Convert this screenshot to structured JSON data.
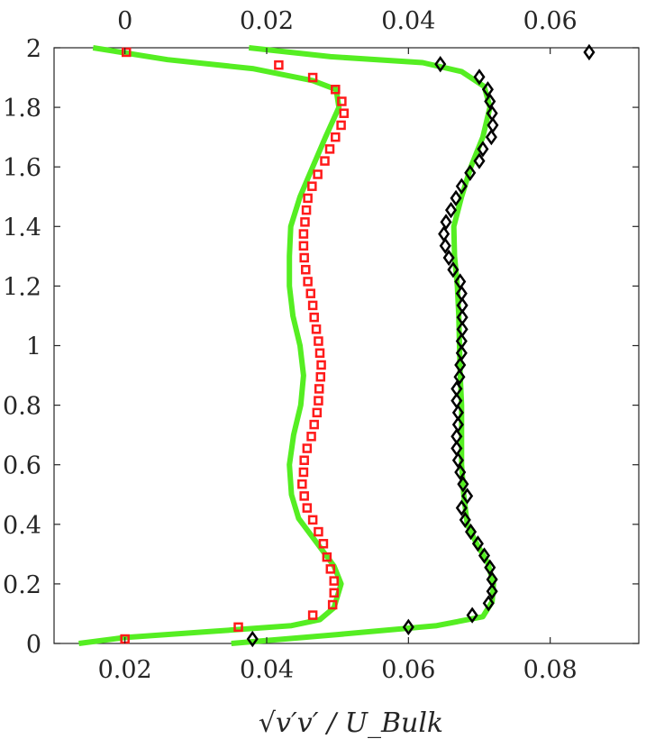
{
  "chart_data": {
    "type": "scatter",
    "title": "",
    "xlabel": "√v′v′ / U_Bulk",
    "ylabel": "",
    "grid": false,
    "axes": {
      "bottom": {
        "range": [
          0.01,
          0.0925
        ],
        "ticks": [
          0.02,
          0.04,
          0.06,
          0.08
        ],
        "tick_labels": [
          "0.02",
          "0.04",
          "0.06",
          "0.08"
        ]
      },
      "top": {
        "range": [
          -0.01,
          0.0725
        ],
        "ticks": [
          0,
          0.02,
          0.04,
          0.06
        ],
        "tick_labels": [
          "0",
          "0.02",
          "0.04",
          "0.06"
        ]
      },
      "left": {
        "range": [
          0,
          2
        ],
        "ticks": [
          0,
          0.2,
          0.4,
          0.6,
          0.8,
          1,
          1.2,
          1.4,
          1.6,
          1.8,
          2
        ],
        "tick_labels": [
          "0",
          "0.2",
          "0.4",
          "0.6",
          "0.8",
          "1",
          "1.2",
          "1.4",
          "1.6",
          "1.8",
          "2"
        ]
      }
    },
    "series": [
      {
        "axis": "top",
        "kind": "line",
        "color": "#55ee22",
        "points": [
          [
            -0.0065,
            0.0
          ],
          [
            0.0,
            0.02
          ],
          [
            0.012,
            0.04
          ],
          [
            0.0235,
            0.06
          ],
          [
            0.0275,
            0.08
          ],
          [
            0.0295,
            0.12
          ],
          [
            0.0305,
            0.2
          ],
          [
            0.0295,
            0.26
          ],
          [
            0.027,
            0.34
          ],
          [
            0.0245,
            0.42
          ],
          [
            0.0235,
            0.5
          ],
          [
            0.0232,
            0.6
          ],
          [
            0.0238,
            0.7
          ],
          [
            0.0248,
            0.8
          ],
          [
            0.0252,
            0.9
          ],
          [
            0.0247,
            1.0
          ],
          [
            0.0237,
            1.1
          ],
          [
            0.0232,
            1.2
          ],
          [
            0.0232,
            1.3
          ],
          [
            0.0234,
            1.4
          ],
          [
            0.0247,
            1.5
          ],
          [
            0.0265,
            1.6
          ],
          [
            0.0283,
            1.7
          ],
          [
            0.0302,
            1.8
          ],
          [
            0.0298,
            1.86
          ],
          [
            0.0265,
            1.89
          ],
          [
            0.018,
            1.93
          ],
          [
            0.006,
            1.96
          ],
          [
            -0.0045,
            2.0
          ]
        ]
      },
      {
        "axis": "top",
        "kind": "markers",
        "marker": "square",
        "color": "#ff1a1a",
        "points": [
          [
            0.0,
            0.015
          ],
          [
            0.016,
            0.055
          ],
          [
            0.0265,
            0.095
          ],
          [
            0.0293,
            0.13
          ],
          [
            0.0295,
            0.17
          ],
          [
            0.0295,
            0.21
          ],
          [
            0.029,
            0.25
          ],
          [
            0.0285,
            0.29
          ],
          [
            0.028,
            0.335
          ],
          [
            0.0273,
            0.375
          ],
          [
            0.0265,
            0.415
          ],
          [
            0.0257,
            0.455
          ],
          [
            0.0253,
            0.495
          ],
          [
            0.025,
            0.535
          ],
          [
            0.0252,
            0.575
          ],
          [
            0.0253,
            0.615
          ],
          [
            0.0257,
            0.655
          ],
          [
            0.0263,
            0.695
          ],
          [
            0.0267,
            0.735
          ],
          [
            0.0271,
            0.775
          ],
          [
            0.0273,
            0.815
          ],
          [
            0.0274,
            0.855
          ],
          [
            0.0276,
            0.895
          ],
          [
            0.0277,
            0.935
          ],
          [
            0.0275,
            0.975
          ],
          [
            0.0273,
            1.015
          ],
          [
            0.027,
            1.055
          ],
          [
            0.0267,
            1.095
          ],
          [
            0.0265,
            1.135
          ],
          [
            0.0262,
            1.175
          ],
          [
            0.0258,
            1.215
          ],
          [
            0.0255,
            1.255
          ],
          [
            0.0253,
            1.295
          ],
          [
            0.0252,
            1.335
          ],
          [
            0.0252,
            1.375
          ],
          [
            0.0254,
            1.415
          ],
          [
            0.0256,
            1.455
          ],
          [
            0.0258,
            1.495
          ],
          [
            0.0264,
            1.535
          ],
          [
            0.0272,
            1.575
          ],
          [
            0.0282,
            1.62
          ],
          [
            0.0289,
            1.66
          ],
          [
            0.0297,
            1.7
          ],
          [
            0.0305,
            1.74
          ],
          [
            0.0309,
            1.78
          ],
          [
            0.0306,
            1.82
          ],
          [
            0.0297,
            1.86
          ],
          [
            0.0265,
            1.9
          ],
          [
            0.0217,
            1.942
          ],
          [
            0.0002,
            1.985
          ]
        ]
      },
      {
        "axis": "bottom",
        "kind": "line",
        "color": "#55ee22",
        "points": [
          [
            0.035,
            0.0
          ],
          [
            0.05,
            0.03
          ],
          [
            0.064,
            0.06
          ],
          [
            0.0705,
            0.09
          ],
          [
            0.0718,
            0.14
          ],
          [
            0.072,
            0.2
          ],
          [
            0.0712,
            0.27
          ],
          [
            0.0695,
            0.34
          ],
          [
            0.0683,
            0.4
          ],
          [
            0.0678,
            0.5
          ],
          [
            0.0675,
            0.6
          ],
          [
            0.0675,
            0.7
          ],
          [
            0.0675,
            0.8
          ],
          [
            0.0673,
            0.9
          ],
          [
            0.0672,
            1.0
          ],
          [
            0.0671,
            1.1
          ],
          [
            0.0669,
            1.2
          ],
          [
            0.0665,
            1.3
          ],
          [
            0.0664,
            1.4
          ],
          [
            0.0675,
            1.5
          ],
          [
            0.0688,
            1.6
          ],
          [
            0.0705,
            1.7
          ],
          [
            0.0715,
            1.8
          ],
          [
            0.0707,
            1.87
          ],
          [
            0.0675,
            1.92
          ],
          [
            0.062,
            1.95
          ],
          [
            0.049,
            1.97
          ],
          [
            0.0375,
            2.0
          ]
        ]
      },
      {
        "axis": "bottom",
        "kind": "markers",
        "marker": "diamond",
        "color": "#000000",
        "points": [
          [
            0.038,
            0.015
          ],
          [
            0.06,
            0.055
          ],
          [
            0.069,
            0.095
          ],
          [
            0.0713,
            0.135
          ],
          [
            0.0718,
            0.175
          ],
          [
            0.0718,
            0.215
          ],
          [
            0.0715,
            0.255
          ],
          [
            0.0707,
            0.295
          ],
          [
            0.0698,
            0.335
          ],
          [
            0.0688,
            0.375
          ],
          [
            0.068,
            0.415
          ],
          [
            0.0675,
            0.455
          ],
          [
            0.0683,
            0.495
          ],
          [
            0.0677,
            0.535
          ],
          [
            0.0673,
            0.575
          ],
          [
            0.067,
            0.615
          ],
          [
            0.0668,
            0.655
          ],
          [
            0.0668,
            0.695
          ],
          [
            0.067,
            0.735
          ],
          [
            0.067,
            0.775
          ],
          [
            0.0668,
            0.815
          ],
          [
            0.0668,
            0.855
          ],
          [
            0.0672,
            0.895
          ],
          [
            0.0673,
            0.935
          ],
          [
            0.0675,
            0.975
          ],
          [
            0.0675,
            1.015
          ],
          [
            0.0676,
            1.055
          ],
          [
            0.0676,
            1.095
          ],
          [
            0.0676,
            1.135
          ],
          [
            0.0675,
            1.175
          ],
          [
            0.0673,
            1.215
          ],
          [
            0.0663,
            1.255
          ],
          [
            0.0657,
            1.295
          ],
          [
            0.0652,
            1.335
          ],
          [
            0.065,
            1.375
          ],
          [
            0.0653,
            1.415
          ],
          [
            0.066,
            1.455
          ],
          [
            0.0667,
            1.495
          ],
          [
            0.0675,
            1.535
          ],
          [
            0.0687,
            1.58
          ],
          [
            0.07,
            1.62
          ],
          [
            0.0705,
            1.66
          ],
          [
            0.0717,
            1.7
          ],
          [
            0.0719,
            1.74
          ],
          [
            0.0718,
            1.78
          ],
          [
            0.0715,
            1.82
          ],
          [
            0.0712,
            1.86
          ],
          [
            0.07,
            1.902
          ],
          [
            0.0645,
            1.945
          ],
          [
            0.0855,
            1.985
          ]
        ]
      }
    ]
  }
}
